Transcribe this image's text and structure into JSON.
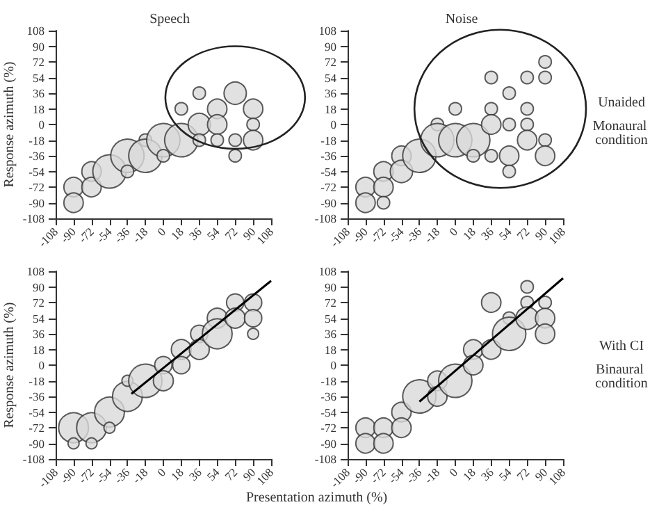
{
  "chart_data": [
    {
      "type": "bubble",
      "title": "Speech",
      "ylabel": "Response azimuth (%)",
      "xlim": [
        -108,
        108
      ],
      "ylim": [
        -108,
        108
      ],
      "xticks": [
        -108,
        -90,
        -72,
        -54,
        -36,
        -18,
        0,
        18,
        36,
        54,
        72,
        90,
        108
      ],
      "yticks": [
        -108,
        -90,
        -72,
        -54,
        -36,
        -18,
        0,
        18,
        36,
        54,
        72,
        90,
        108
      ],
      "series": [
        {
          "color": "#d9d9d9",
          "x": [
            -90,
            -90,
            -72,
            -72,
            -54,
            -36,
            -36,
            -18,
            -18,
            0,
            0,
            18,
            18,
            36,
            36,
            36,
            54,
            54,
            54,
            72,
            72,
            72,
            90,
            90,
            90
          ],
          "values": [
            -72,
            -90,
            -54,
            -72,
            -54,
            -36,
            -54,
            -18,
            -36,
            -18,
            -36,
            18,
            -18,
            36,
            0,
            -18,
            18,
            0,
            -18,
            36,
            -18,
            -36,
            18,
            0,
            -18
          ],
          "sizes": [
            0.34,
            0.34,
            0.34,
            0.34,
            1,
            1,
            0.14,
            0.14,
            1,
            1,
            0.14,
            0.14,
            1,
            0.14,
            0.45,
            0.14,
            0.34,
            0.34,
            0.14,
            0.45,
            0.14,
            0.14,
            0.34,
            0.14,
            0.34
          ]
        }
      ]
    },
    {
      "type": "bubble",
      "title": "Noise",
      "annotations": [
        "Unaided",
        "Monaural condition"
      ],
      "xlim": [
        -108,
        108
      ],
      "ylim": [
        -108,
        108
      ],
      "xticks": [
        -108,
        -90,
        -72,
        -54,
        -36,
        -18,
        0,
        18,
        36,
        54,
        72,
        90,
        108
      ],
      "yticks": [
        -108,
        -90,
        -72,
        -54,
        -36,
        -18,
        0,
        18,
        36,
        54,
        72,
        90,
        108
      ],
      "series": [
        {
          "color": "#d9d9d9",
          "x": [
            -90,
            -90,
            -72,
            -72,
            -72,
            -54,
            -54,
            -36,
            -18,
            -18,
            0,
            0,
            18,
            18,
            36,
            36,
            36,
            36,
            54,
            54,
            54,
            54,
            72,
            72,
            72,
            72,
            90,
            90,
            90,
            90
          ],
          "values": [
            -72,
            -90,
            -54,
            -72,
            -90,
            -36,
            -54,
            -36,
            0,
            -18,
            18,
            -18,
            -18,
            -36,
            54,
            18,
            0,
            -36,
            36,
            0,
            -36,
            -54,
            54,
            18,
            0,
            -18,
            72,
            54,
            -18,
            -36
          ],
          "sizes": [
            0.34,
            0.34,
            0.34,
            0.34,
            0.14,
            0.34,
            0.45,
            1,
            0.14,
            1,
            0.14,
            1,
            1,
            0.14,
            0.14,
            0.14,
            0.34,
            0.14,
            0.14,
            0.14,
            0.34,
            0.14,
            0.14,
            0.14,
            0.14,
            0.34,
            0.14,
            0.14,
            0.14,
            0.34
          ]
        }
      ]
    },
    {
      "type": "bubble",
      "xlabel": "Presentation azimuth (%)",
      "ylabel": "Response azimuth (%)",
      "xlim": [
        -108,
        108
      ],
      "ylim": [
        -108,
        108
      ],
      "xticks": [
        -108,
        -90,
        -72,
        -54,
        -36,
        -18,
        0,
        18,
        36,
        54,
        72,
        90,
        108
      ],
      "yticks": [
        -108,
        -90,
        -72,
        -54,
        -36,
        -18,
        0,
        18,
        36,
        54,
        72,
        90,
        108
      ],
      "series": [
        {
          "color": "#d9d9d9",
          "x": [
            -90,
            -90,
            -72,
            -72,
            -54,
            -54,
            -36,
            -36,
            -18,
            0,
            0,
            18,
            18,
            36,
            36,
            54,
            54,
            72,
            72,
            90,
            90,
            90
          ],
          "values": [
            -72,
            -90,
            -72,
            -90,
            -54,
            -72,
            -36,
            -18,
            -18,
            0,
            -18,
            18,
            0,
            36,
            18,
            54,
            36,
            72,
            54,
            72,
            54,
            36
          ],
          "sizes": [
            0.8,
            0.11,
            0.8,
            0.11,
            0.8,
            0.11,
            0.8,
            0.11,
            1,
            0.27,
            0.36,
            0.36,
            0.27,
            0.27,
            0.36,
            0.36,
            0.8,
            0.27,
            0.36,
            0.27,
            0.27,
            0.11
          ]
        },
        {
          "type": "line",
          "color": "#000000",
          "x": [
            -32,
            108
          ],
          "values": [
            -33,
            97
          ]
        }
      ]
    },
    {
      "type": "bubble",
      "annotations": [
        "With CI",
        "Binaural condition"
      ],
      "xlim": [
        -108,
        108
      ],
      "ylim": [
        -108,
        108
      ],
      "xticks": [
        -108,
        -90,
        -72,
        -54,
        -36,
        -18,
        0,
        18,
        36,
        54,
        72,
        90,
        108
      ],
      "yticks": [
        -108,
        -90,
        -72,
        -54,
        -36,
        -18,
        0,
        18,
        36,
        54,
        72,
        90,
        108
      ],
      "series": [
        {
          "color": "#d9d9d9",
          "x": [
            -90,
            -90,
            -72,
            -72,
            -54,
            -54,
            -36,
            -18,
            -18,
            0,
            18,
            18,
            36,
            36,
            54,
            54,
            72,
            72,
            72,
            90,
            90,
            90
          ],
          "values": [
            -72,
            -90,
            -72,
            -90,
            -54,
            -72,
            -36,
            -18,
            -36,
            -18,
            18,
            0,
            72,
            18,
            54,
            36,
            90,
            72,
            54,
            72,
            54,
            36
          ],
          "sizes": [
            0.34,
            0.34,
            0.34,
            0.34,
            0.34,
            0.34,
            1,
            0.34,
            0.34,
            1,
            0.34,
            0.34,
            0.34,
            0.34,
            0.14,
            1,
            0.14,
            0.14,
            0.45,
            0.14,
            0.34,
            0.34
          ]
        },
        {
          "type": "line",
          "color": "#000000",
          "x": [
            -36,
            108
          ],
          "values": [
            -42,
            100
          ]
        }
      ]
    }
  ]
}
